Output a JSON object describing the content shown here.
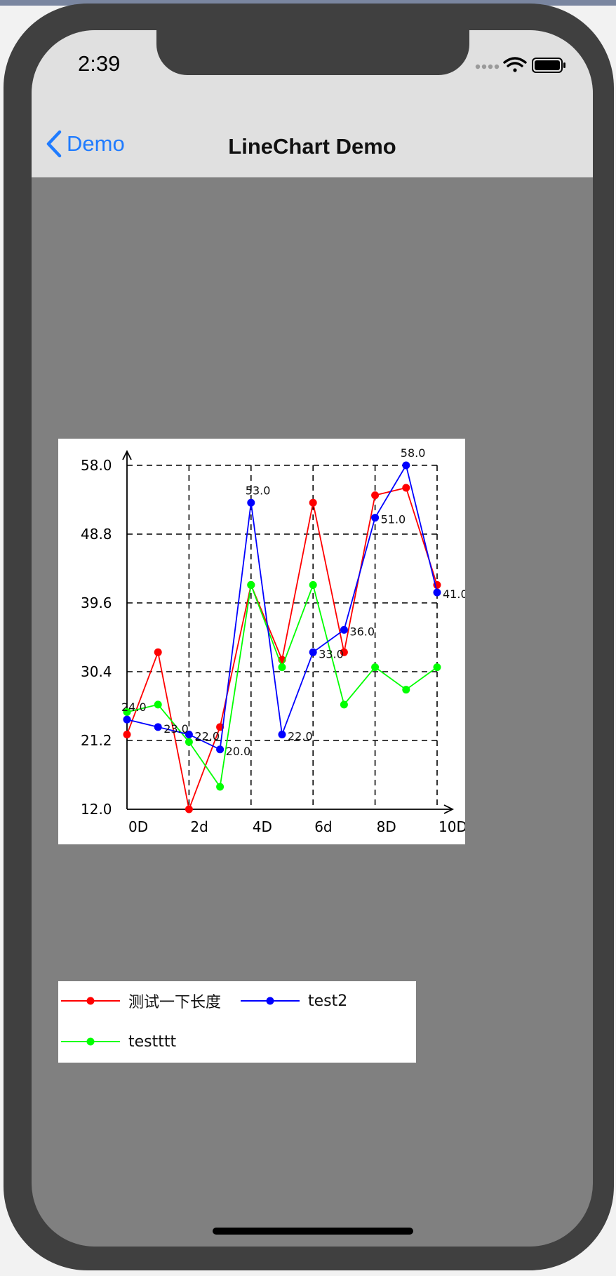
{
  "status_bar": {
    "time": "2:39",
    "icons": [
      "signal-dots-icon",
      "wifi-icon",
      "battery-icon"
    ]
  },
  "navbar": {
    "back_label": "Demo",
    "title": "LineChart Demo"
  },
  "colors": {
    "screen_background": "#808080",
    "nav_background": "#e0e0e0",
    "back_tint": "#1f7bff",
    "series_red": "#ff0000",
    "series_blue": "#0000ff",
    "series_green": "#00ff00"
  },
  "chart_data": {
    "type": "line",
    "title": "",
    "xlabel": "",
    "ylabel": "",
    "x": [
      0,
      1,
      2,
      3,
      4,
      5,
      6,
      7,
      8,
      9,
      10
    ],
    "x_tick_labels": [
      "0D",
      "2d",
      "4D",
      "6d",
      "8D",
      "10D"
    ],
    "y_tick_labels": [
      "12.0",
      "21.2",
      "30.4",
      "39.6",
      "48.8",
      "58.0"
    ],
    "ylim": [
      12,
      58
    ],
    "grid": true,
    "series": [
      {
        "name": "测试一下长度",
        "color": "#ff0000",
        "values": [
          22,
          33,
          12,
          23,
          42,
          32,
          53,
          33,
          54,
          55,
          42
        ],
        "point_labels": []
      },
      {
        "name": "test2",
        "color": "#0000ff",
        "values": [
          24,
          23,
          22,
          20,
          53,
          22,
          33,
          36,
          51,
          58,
          41
        ],
        "point_labels": [
          "24.0",
          "23.0",
          "22.0",
          "20.0",
          "53.0",
          "22.0",
          "33.0",
          "36.0",
          "51.0",
          "58.0",
          "41.0"
        ]
      },
      {
        "name": "testttt",
        "color": "#00ff00",
        "values": [
          25,
          26,
          21,
          15,
          42,
          31,
          42,
          26,
          31,
          28,
          31
        ],
        "point_labels": []
      }
    ]
  }
}
